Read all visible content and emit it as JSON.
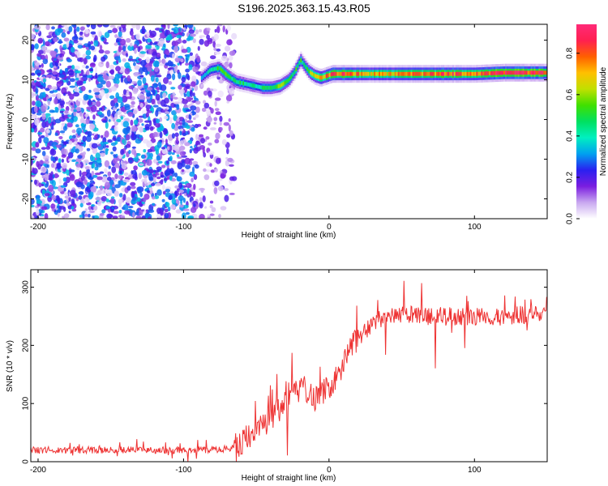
{
  "title": "S196.2025.363.15.43.R05",
  "chart_data": [
    {
      "type": "heatmap",
      "title": "",
      "xlabel": "Height of straight line (km)",
      "ylabel": "Frequency (Hz)",
      "xlim": [
        -205,
        150
      ],
      "ylim": [
        -25,
        24
      ],
      "x_ticks": [
        -200,
        -100,
        0,
        100
      ],
      "y_ticks": [
        -20,
        -10,
        0,
        10,
        20
      ],
      "colorbar": {
        "label": "Normalized spectral amplitude",
        "range": [
          0,
          0.94
        ],
        "ticks": [
          0.0,
          0.2,
          0.4,
          0.6,
          0.8
        ],
        "colors": [
          "#ffffff",
          "#c9a8f0",
          "#7a1ee0",
          "#2a20f0",
          "#00a0f0",
          "#00f0c0",
          "#00e060",
          "#40e000",
          "#c0e000",
          "#ffc000",
          "#ff6000",
          "#ff2050",
          "#ff2a78"
        ]
      },
      "ridge": {
        "x": [
          -88,
          -82,
          -76,
          -70,
          -64,
          -58,
          -52,
          -46,
          -40,
          -34,
          -28,
          -24,
          -20,
          -17,
          -14,
          -10,
          -6,
          -2,
          2,
          8,
          15,
          25,
          40,
          60,
          80,
          100,
          120,
          150
        ],
        "y": [
          10.5,
          12.5,
          13.0,
          11.0,
          9.5,
          9.0,
          8.5,
          8.0,
          8.0,
          8.5,
          10.0,
          12.0,
          15.0,
          13.5,
          12.0,
          11.0,
          10.5,
          11.0,
          11.5,
          11.5,
          11.5,
          11.5,
          11.5,
          11.5,
          11.5,
          11.5,
          11.8,
          11.8
        ],
        "amplitude": [
          0.3,
          0.45,
          0.5,
          0.5,
          0.45,
          0.45,
          0.4,
          0.45,
          0.5,
          0.55,
          0.5,
          0.5,
          0.5,
          0.45,
          0.55,
          0.6,
          0.7,
          0.75,
          0.8,
          0.85,
          0.75,
          0.7,
          0.7,
          0.75,
          0.8,
          0.8,
          0.85,
          0.85
        ]
      },
      "noise_region": {
        "x_from": -205,
        "x_to": -75,
        "amplitude_max": 0.35
      }
    },
    {
      "type": "line",
      "title": "",
      "xlabel": "Height of straight line (km)",
      "ylabel": "SNR (10 * v/v)",
      "xlim": [
        -205,
        150
      ],
      "ylim": [
        0,
        330
      ],
      "x_ticks": [
        -200,
        -100,
        0,
        100
      ],
      "y_ticks": [
        0,
        100,
        200,
        300
      ],
      "color": "#ee3333",
      "series": [
        {
          "x": [
            -205,
            -190,
            -175,
            -160,
            -145,
            -130,
            -115,
            -100,
            -90,
            -80,
            -70,
            -62,
            -58,
            -54,
            -50,
            -46,
            -42,
            -38,
            -34,
            -30,
            -26,
            -22,
            -18,
            -14,
            -10,
            -6,
            -2,
            2,
            6,
            10,
            14,
            18,
            22,
            26,
            30,
            35,
            40,
            50,
            60,
            70,
            80,
            90,
            100,
            110,
            120,
            130,
            140,
            150
          ],
          "y": [
            20,
            20,
            20,
            20,
            20,
            20,
            20,
            20,
            20,
            20,
            22,
            28,
            40,
            48,
            55,
            60,
            70,
            80,
            90,
            100,
            110,
            120,
            130,
            120,
            110,
            115,
            125,
            135,
            150,
            170,
            190,
            205,
            215,
            225,
            235,
            245,
            248,
            252,
            252,
            250,
            250,
            250,
            250,
            248,
            250,
            252,
            255,
            258
          ]
        }
      ]
    }
  ]
}
